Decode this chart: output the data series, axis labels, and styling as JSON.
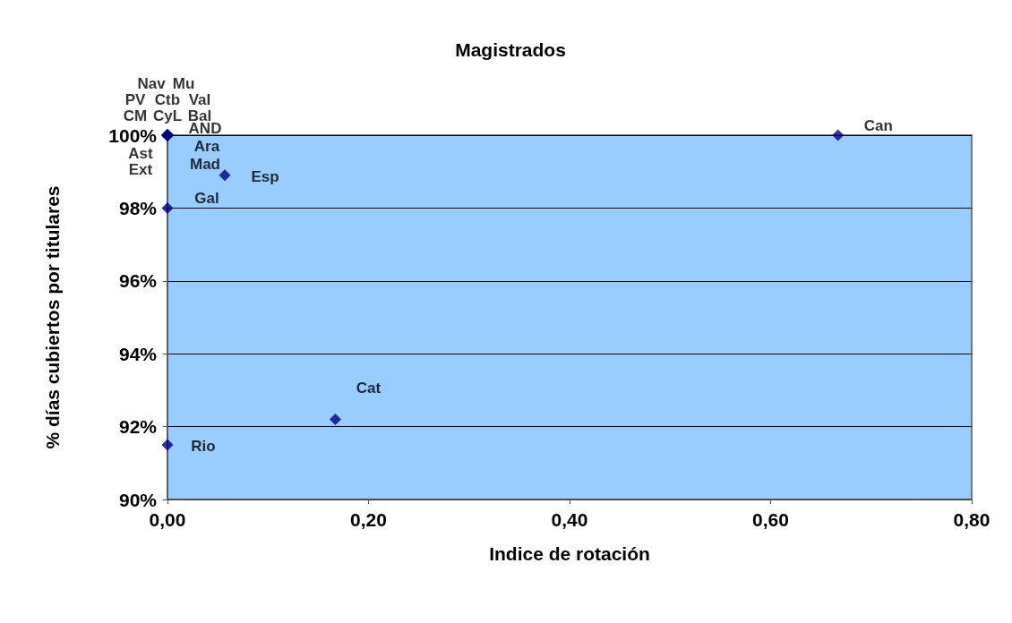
{
  "chart_data": {
    "type": "scatter",
    "title": "Magistrados",
    "xlabel": "Indice de rotación",
    "ylabel": "% días cubiertos por titulares",
    "x": [
      0,
      0,
      0,
      0,
      0,
      0,
      0,
      0,
      0,
      0,
      0,
      0,
      0,
      0,
      0.057,
      0,
      0.167,
      0.667
    ],
    "values": [
      100,
      100,
      100,
      100,
      100,
      100,
      100,
      100,
      100,
      100,
      100,
      100,
      100,
      91.5,
      98.9,
      98,
      92.2,
      100
    ],
    "value_labels": [
      "PV",
      "Nav",
      "Mu",
      "Ext",
      "CM",
      "Ctb",
      "Ast",
      "Bal",
      "CyL",
      "Val",
      "AND",
      "Ara",
      "Mad",
      "Rio",
      "Esp",
      "Gal",
      "Cat",
      "Can"
    ],
    "color": "#000080",
    "marker": "diamond",
    "grid": "y",
    "xlim": [
      0,
      0.8
    ],
    "xticks": [
      {
        "value": 0,
        "label": "0,00"
      },
      {
        "value": 0.2,
        "label": "0,20"
      },
      {
        "value": 0.4,
        "label": "0,40"
      },
      {
        "value": 0.6,
        "label": "0,60"
      },
      {
        "value": 0.8,
        "label": "0,80"
      }
    ],
    "ylim": [
      90,
      100
    ],
    "yticks": [
      {
        "value": 90,
        "label": "90%"
      },
      {
        "value": 92,
        "label": "92%"
      },
      {
        "value": 94,
        "label": "94%"
      },
      {
        "value": 96,
        "label": "96%"
      },
      {
        "value": 98,
        "label": "98%"
      },
      {
        "value": 100,
        "label": "100%"
      }
    ]
  }
}
